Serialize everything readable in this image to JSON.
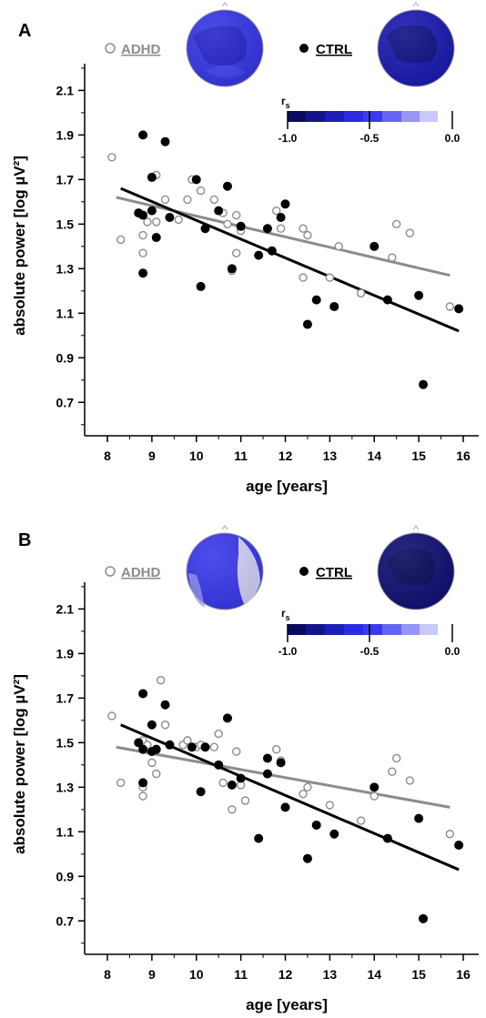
{
  "colors": {
    "adhd": "#8c8c8c",
    "ctrl": "#000000",
    "adhd_marker_fill": "#ffffff",
    "colorbar": [
      "#0a0a5e",
      "#141488",
      "#1f1fb8",
      "#2b2be0",
      "#3a3af0",
      "#6565f2",
      "#9696f5",
      "#c8c8fa"
    ],
    "head_adhd_A": "#3838e6",
    "head_ctrl_A": "#1c1cb2",
    "head_adhd_B": "#3a3aeb",
    "head_ctrl_B": "#121275"
  },
  "chart_data": [
    {
      "panel": "A",
      "type": "scatter",
      "xlabel": "age [years]",
      "ylabel": "absolute power [log µV²]",
      "xlim": [
        7.8,
        16.3
      ],
      "ylim": [
        0.55,
        2.22
      ],
      "xticks": [
        8,
        9,
        10,
        11,
        12,
        13,
        14,
        15,
        16
      ],
      "yticks": [
        0.7,
        0.9,
        1.1,
        1.3,
        1.5,
        1.7,
        1.9,
        2.1
      ],
      "yminor": [
        0.6,
        0.8,
        1.0,
        1.2,
        1.4,
        1.6,
        1.8,
        2.0,
        2.2
      ],
      "legend": [
        {
          "name": "ADHD",
          "marker": "open-circle"
        },
        {
          "name": "CTRL",
          "marker": "filled-circle"
        }
      ],
      "colorbar": {
        "label": "r",
        "subscript": "s",
        "ticks": [
          "-1.0",
          "-0.5",
          "0.0"
        ]
      },
      "series": [
        {
          "name": "ADHD",
          "fit": {
            "x": [
              8.2,
              15.7
            ],
            "y": [
              1.62,
              1.27
            ]
          },
          "points": [
            [
              8.1,
              1.8
            ],
            [
              8.3,
              1.43
            ],
            [
              8.8,
              1.45
            ],
            [
              8.8,
              1.37
            ],
            [
              8.9,
              1.51
            ],
            [
              9.1,
              1.72
            ],
            [
              9.1,
              1.51
            ],
            [
              9.3,
              1.61
            ],
            [
              9.6,
              1.52
            ],
            [
              9.8,
              1.61
            ],
            [
              9.9,
              1.7
            ],
            [
              10.1,
              1.65
            ],
            [
              10.4,
              1.61
            ],
            [
              10.6,
              1.55
            ],
            [
              10.7,
              1.5
            ],
            [
              10.8,
              1.29
            ],
            [
              10.9,
              1.54
            ],
            [
              10.9,
              1.37
            ],
            [
              11.0,
              1.47
            ],
            [
              11.8,
              1.56
            ],
            [
              11.9,
              1.48
            ],
            [
              12.4,
              1.48
            ],
            [
              12.4,
              1.26
            ],
            [
              12.5,
              1.45
            ],
            [
              13.0,
              1.26
            ],
            [
              13.2,
              1.4
            ],
            [
              13.7,
              1.19
            ],
            [
              14.0,
              1.4
            ],
            [
              14.4,
              1.35
            ],
            [
              14.5,
              1.5
            ],
            [
              14.8,
              1.46
            ],
            [
              15.7,
              1.13
            ]
          ]
        },
        {
          "name": "CTRL",
          "fit": {
            "x": [
              8.3,
              15.9
            ],
            "y": [
              1.66,
              1.02
            ]
          },
          "points": [
            [
              8.7,
              1.55
            ],
            [
              8.8,
              1.9
            ],
            [
              8.8,
              1.54
            ],
            [
              8.8,
              1.28
            ],
            [
              9.0,
              1.56
            ],
            [
              9.0,
              1.71
            ],
            [
              9.1,
              1.44
            ],
            [
              9.3,
              1.87
            ],
            [
              9.4,
              1.53
            ],
            [
              10.0,
              1.7
            ],
            [
              10.1,
              1.22
            ],
            [
              10.2,
              1.48
            ],
            [
              10.5,
              1.56
            ],
            [
              10.7,
              1.67
            ],
            [
              10.8,
              1.3
            ],
            [
              11.0,
              1.49
            ],
            [
              11.4,
              1.36
            ],
            [
              11.6,
              1.48
            ],
            [
              11.7,
              1.38
            ],
            [
              11.9,
              1.53
            ],
            [
              12.0,
              1.59
            ],
            [
              12.5,
              1.05
            ],
            [
              12.7,
              1.16
            ],
            [
              13.1,
              1.13
            ],
            [
              14.0,
              1.4
            ],
            [
              14.3,
              1.16
            ],
            [
              15.0,
              1.18
            ],
            [
              15.1,
              0.78
            ],
            [
              15.9,
              1.12
            ]
          ]
        }
      ]
    },
    {
      "panel": "B",
      "type": "scatter",
      "xlabel": "age [years]",
      "ylabel": "absolute power [log µV²]",
      "xlim": [
        7.8,
        16.3
      ],
      "ylim": [
        0.55,
        2.22
      ],
      "xticks": [
        8,
        9,
        10,
        11,
        12,
        13,
        14,
        15,
        16
      ],
      "yticks": [
        0.7,
        0.9,
        1.1,
        1.3,
        1.5,
        1.7,
        1.9,
        2.1
      ],
      "yminor": [
        0.6,
        0.8,
        1.0,
        1.2,
        1.4,
        1.6,
        1.8,
        2.0,
        2.2
      ],
      "legend": [
        {
          "name": "ADHD",
          "marker": "open-circle"
        },
        {
          "name": "CTRL",
          "marker": "filled-circle"
        }
      ],
      "colorbar": {
        "label": "r",
        "subscript": "s",
        "ticks": [
          "-1.0",
          "-0.5",
          "0.0"
        ]
      },
      "series": [
        {
          "name": "ADHD",
          "fit": {
            "x": [
              8.2,
              15.7
            ],
            "y": [
              1.48,
              1.21
            ]
          },
          "points": [
            [
              8.1,
              1.62
            ],
            [
              8.3,
              1.32
            ],
            [
              8.8,
              1.3
            ],
            [
              8.8,
              1.26
            ],
            [
              8.8,
              1.51
            ],
            [
              8.9,
              1.49
            ],
            [
              9.0,
              1.41
            ],
            [
              9.1,
              1.36
            ],
            [
              9.2,
              1.78
            ],
            [
              9.3,
              1.58
            ],
            [
              9.4,
              1.49
            ],
            [
              9.7,
              1.49
            ],
            [
              9.8,
              1.51
            ],
            [
              10.0,
              1.48
            ],
            [
              10.1,
              1.49
            ],
            [
              10.4,
              1.48
            ],
            [
              10.5,
              1.54
            ],
            [
              10.6,
              1.32
            ],
            [
              10.8,
              1.2
            ],
            [
              10.9,
              1.46
            ],
            [
              11.0,
              1.31
            ],
            [
              11.1,
              1.24
            ],
            [
              11.8,
              1.47
            ],
            [
              11.9,
              1.42
            ],
            [
              12.4,
              1.27
            ],
            [
              12.5,
              1.3
            ],
            [
              13.0,
              1.22
            ],
            [
              13.7,
              1.15
            ],
            [
              14.0,
              1.26
            ],
            [
              14.4,
              1.37
            ],
            [
              14.5,
              1.43
            ],
            [
              14.8,
              1.33
            ],
            [
              15.7,
              1.09
            ]
          ]
        },
        {
          "name": "CTRL",
          "fit": {
            "x": [
              8.3,
              15.9
            ],
            "y": [
              1.58,
              0.93
            ]
          },
          "points": [
            [
              8.7,
              1.5
            ],
            [
              8.8,
              1.72
            ],
            [
              8.8,
              1.47
            ],
            [
              8.8,
              1.32
            ],
            [
              9.0,
              1.46
            ],
            [
              9.0,
              1.58
            ],
            [
              9.1,
              1.47
            ],
            [
              9.3,
              1.67
            ],
            [
              9.4,
              1.49
            ],
            [
              9.9,
              1.48
            ],
            [
              10.1,
              1.28
            ],
            [
              10.2,
              1.48
            ],
            [
              10.5,
              1.4
            ],
            [
              10.7,
              1.61
            ],
            [
              10.8,
              1.31
            ],
            [
              11.0,
              1.34
            ],
            [
              11.4,
              1.07
            ],
            [
              11.6,
              1.43
            ],
            [
              11.6,
              1.36
            ],
            [
              11.9,
              1.41
            ],
            [
              12.0,
              1.21
            ],
            [
              12.5,
              0.98
            ],
            [
              12.7,
              1.13
            ],
            [
              13.1,
              1.09
            ],
            [
              14.0,
              1.3
            ],
            [
              14.3,
              1.07
            ],
            [
              15.0,
              1.16
            ],
            [
              15.1,
              0.71
            ],
            [
              15.9,
              1.04
            ]
          ]
        }
      ]
    }
  ]
}
